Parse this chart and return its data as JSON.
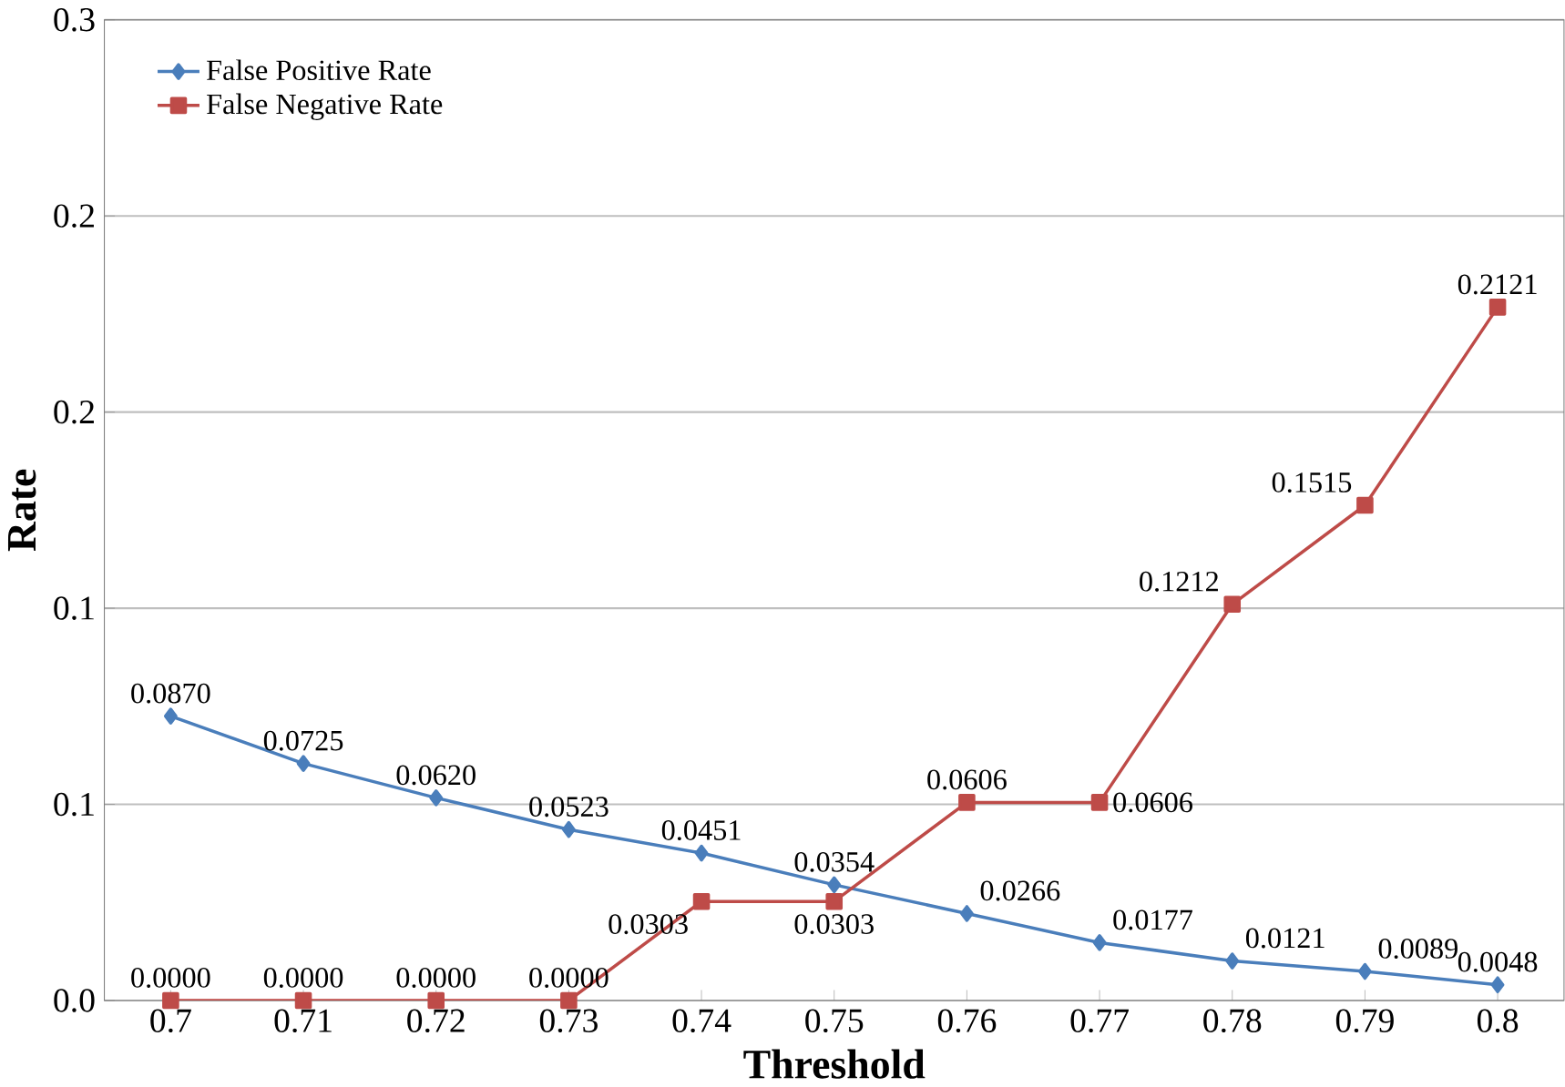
{
  "chart_data": {
    "type": "line",
    "xlabel": "Threshold",
    "ylabel": "Rate",
    "x": [
      0.7,
      0.71,
      0.72,
      0.73,
      0.74,
      0.75,
      0.76,
      0.77,
      0.78,
      0.79,
      0.8
    ],
    "xlim": [
      0.695,
      0.805
    ],
    "xticks": [
      0.7,
      0.71,
      0.72,
      0.73,
      0.74,
      0.75,
      0.76,
      0.77,
      0.78,
      0.79,
      0.8
    ],
    "ylim": [
      0,
      0.3
    ],
    "yticks": [
      {
        "value": 0,
        "label": "0.0"
      },
      {
        "value": 0.06,
        "label": "0.1"
      },
      {
        "value": 0.12,
        "label": "0.1"
      },
      {
        "value": 0.18,
        "label": "0.2"
      },
      {
        "value": 0.24,
        "label": "0.2"
      },
      {
        "value": 0.3,
        "label": "0.3"
      }
    ],
    "grid": "y",
    "legend": "top left",
    "series": [
      {
        "name": "False Positive Rate",
        "color": "#4a7ebb",
        "marker": "diamond",
        "values": [
          0.087,
          0.0725,
          0.062,
          0.0523,
          0.0451,
          0.0354,
          0.0266,
          0.0177,
          0.0121,
          0.0089,
          0.0048
        ],
        "value_labels": [
          "0.0870",
          "0.0725",
          "0.0620",
          "0.0523",
          "0.0451",
          "0.0354",
          "0.0266",
          "0.0177",
          "0.0121",
          "0.0089",
          "0.0048"
        ]
      },
      {
        "name": "False Negative Rate",
        "color": "#be4b48",
        "marker": "square",
        "values": [
          0,
          0,
          0,
          0,
          0.0303,
          0.0303,
          0.0606,
          0.0606,
          0.1212,
          0.1515,
          0.2121
        ],
        "value_labels": [
          "0.0000",
          "0.0000",
          "0.0000",
          "0.0000",
          "0.0303",
          "0.0303",
          "0.0606",
          "0.0606",
          "0.1212",
          "0.1515",
          "0.2121"
        ]
      }
    ]
  }
}
